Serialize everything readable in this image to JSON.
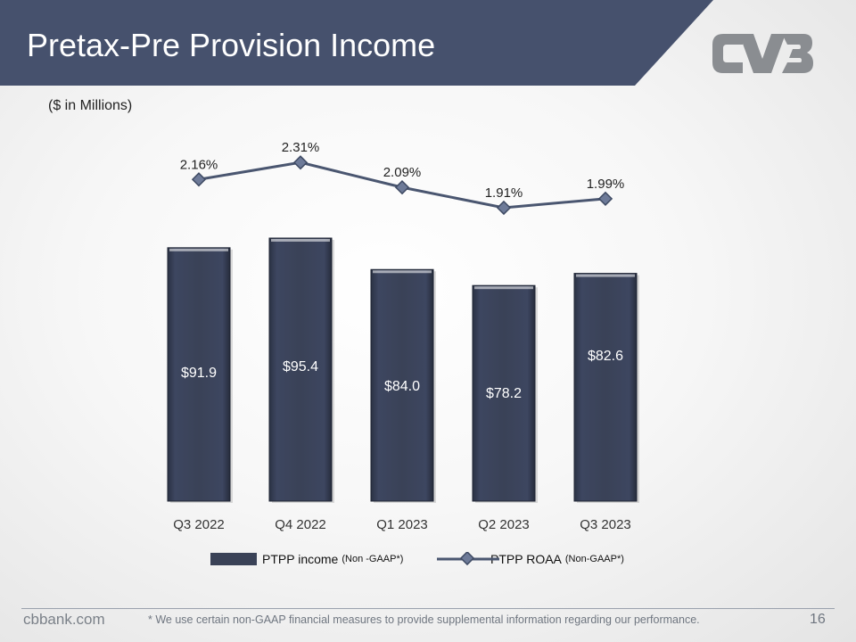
{
  "header": {
    "title": "Pretax-Pre Provision Income",
    "banner_color": "#46516d",
    "logo_name": "cvb-logo"
  },
  "subtitle": "($ in Millions)",
  "chart_data": {
    "type": "bar",
    "categories": [
      "Q3 2022",
      "Q4 2022",
      "Q1 2023",
      "Q2 2023",
      "Q3 2023"
    ],
    "series": [
      {
        "name": "PTPP income (Non -GAAP*)",
        "kind": "bar",
        "values": [
          91.9,
          95.4,
          84.0,
          78.2,
          82.6
        ],
        "labels": [
          "$91.9",
          "$95.4",
          "$84.0",
          "$78.2",
          "$82.6"
        ],
        "color": "#3a4257"
      },
      {
        "name": "PTPP ROAA (Non-GAAP*)",
        "kind": "line",
        "values": [
          2.16,
          2.31,
          2.09,
          1.91,
          1.99
        ],
        "labels": [
          "2.16%",
          "2.31%",
          "2.09%",
          "1.91%",
          "1.99%"
        ],
        "color": "#4a5670"
      }
    ],
    "grid": false,
    "legend_position": "bottom"
  },
  "legend": {
    "bar_main": "PTPP income",
    "bar_sub": "(Non -GAAP*)",
    "line_main": "PTPP ROAA",
    "line_sub": "(Non-GAAP*)"
  },
  "footer": {
    "site": "cbbank.com",
    "note": "* We use certain non-GAAP financial measures to provide supplemental information regarding our performance.",
    "page": "16"
  }
}
